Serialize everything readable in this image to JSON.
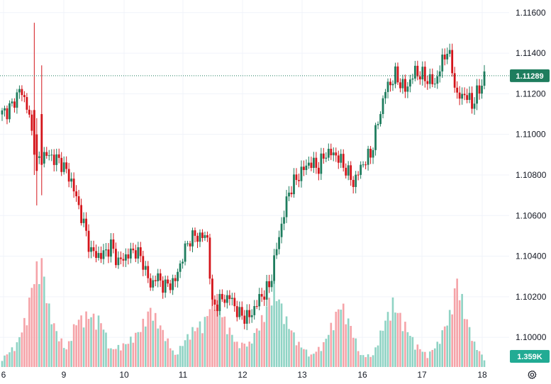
{
  "chart_data": {
    "type": "candlestick",
    "y_ticks": [
      "1.11600",
      "1.11400",
      "1.11200",
      "1.11000",
      "1.10800",
      "1.10600",
      "1.10400",
      "1.10200",
      "1.10000"
    ],
    "y_tick_values": [
      1.116,
      1.114,
      1.112,
      1.11,
      1.108,
      1.106,
      1.104,
      1.102,
      1.1
    ],
    "ylim": [
      1.09854,
      1.11662
    ],
    "x_ticks": [
      "6",
      "9",
      "10",
      "11",
      "12",
      "13",
      "16",
      "17",
      "18"
    ],
    "current_price": 1.11289,
    "current_price_label": "1.11289",
    "volume_label": "1.359K",
    "grid": true,
    "colors": {
      "up": "#26a69a",
      "down": "#ef5350",
      "up_body": "#1e7d5e",
      "down_body": "#d4141a",
      "vol_up": "#8fd3c4",
      "vol_down": "#f5a3a8",
      "badge_price": "#1e7d5e",
      "badge_vol": "#22ab94"
    },
    "anchors": [
      {
        "i": 0,
        "p": 1.111
      },
      {
        "i": 4,
        "p": 1.1114
      },
      {
        "i": 7,
        "p": 1.1122
      },
      {
        "i": 10,
        "p": 1.1115
      },
      {
        "i": 12,
        "p": 1.11
      },
      {
        "i": 14,
        "p": 1.1086
      },
      {
        "i": 17,
        "p": 1.109
      },
      {
        "i": 20,
        "p": 1.1089
      },
      {
        "i": 24,
        "p": 1.1086
      },
      {
        "i": 28,
        "p": 1.1077
      },
      {
        "i": 32,
        "p": 1.106
      },
      {
        "i": 36,
        "p": 1.1042
      },
      {
        "i": 40,
        "p": 1.104
      },
      {
        "i": 44,
        "p": 1.1045
      },
      {
        "i": 47,
        "p": 1.1037
      },
      {
        "i": 50,
        "p": 1.104
      },
      {
        "i": 54,
        "p": 1.1043
      },
      {
        "i": 57,
        "p": 1.1037
      },
      {
        "i": 60,
        "p": 1.1025
      },
      {
        "i": 62,
        "p": 1.103
      },
      {
        "i": 66,
        "p": 1.1025
      },
      {
        "i": 70,
        "p": 1.1028
      },
      {
        "i": 73,
        "p": 1.104
      },
      {
        "i": 76,
        "p": 1.1049
      },
      {
        "i": 80,
        "p": 1.105
      },
      {
        "i": 83,
        "p": 1.1049
      },
      {
        "i": 85,
        "p": 1.1015
      },
      {
        "i": 88,
        "p": 1.1018
      },
      {
        "i": 92,
        "p": 1.102
      },
      {
        "i": 96,
        "p": 1.1011
      },
      {
        "i": 100,
        "p": 1.101
      },
      {
        "i": 104,
        "p": 1.1019
      },
      {
        "i": 108,
        "p": 1.1025
      },
      {
        "i": 112,
        "p": 1.105
      },
      {
        "i": 116,
        "p": 1.1072
      },
      {
        "i": 120,
        "p": 1.108
      },
      {
        "i": 124,
        "p": 1.1086
      },
      {
        "i": 128,
        "p": 1.1084
      },
      {
        "i": 131,
        "p": 1.1091
      },
      {
        "i": 135,
        "p": 1.109
      },
      {
        "i": 139,
        "p": 1.1083
      },
      {
        "i": 142,
        "p": 1.1076
      },
      {
        "i": 146,
        "p": 1.1086
      },
      {
        "i": 149,
        "p": 1.109
      },
      {
        "i": 152,
        "p": 1.1106
      },
      {
        "i": 155,
        "p": 1.1122
      },
      {
        "i": 159,
        "p": 1.1129
      },
      {
        "i": 163,
        "p": 1.1122
      },
      {
        "i": 167,
        "p": 1.1131
      },
      {
        "i": 171,
        "p": 1.1128
      },
      {
        "i": 175,
        "p": 1.1125
      },
      {
        "i": 178,
        "p": 1.1136
      },
      {
        "i": 180,
        "p": 1.1142
      },
      {
        "i": 182,
        "p": 1.1132
      },
      {
        "i": 184,
        "p": 1.1118
      },
      {
        "i": 187,
        "p": 1.112
      },
      {
        "i": 190,
        "p": 1.1115
      },
      {
        "i": 193,
        "p": 1.1122
      },
      {
        "i": 195,
        "p": 1.1129
      }
    ],
    "spikes": [
      {
        "i": 13,
        "high": 1.1155,
        "low": 1.108,
        "open": 1.1112,
        "close": 1.109
      },
      {
        "i": 14,
        "high": 1.1108,
        "low": 1.1065,
        "open": 1.11,
        "close": 1.1082
      },
      {
        "i": 16,
        "high": 1.1134,
        "low": 1.107,
        "open": 1.111,
        "close": 1.1085
      }
    ],
    "volume_anchors": [
      {
        "i": 0,
        "v": 0.07
      },
      {
        "i": 6,
        "v": 0.2
      },
      {
        "i": 10,
        "v": 0.45
      },
      {
        "i": 13,
        "v": 0.8
      },
      {
        "i": 16,
        "v": 0.9
      },
      {
        "i": 19,
        "v": 0.5
      },
      {
        "i": 22,
        "v": 0.3
      },
      {
        "i": 26,
        "v": 0.15
      },
      {
        "i": 30,
        "v": 0.4
      },
      {
        "i": 35,
        "v": 0.45
      },
      {
        "i": 40,
        "v": 0.4
      },
      {
        "i": 44,
        "v": 0.15
      },
      {
        "i": 50,
        "v": 0.2
      },
      {
        "i": 55,
        "v": 0.3
      },
      {
        "i": 60,
        "v": 0.5
      },
      {
        "i": 64,
        "v": 0.35
      },
      {
        "i": 70,
        "v": 0.1
      },
      {
        "i": 76,
        "v": 0.3
      },
      {
        "i": 82,
        "v": 0.4
      },
      {
        "i": 86,
        "v": 0.65
      },
      {
        "i": 90,
        "v": 0.4
      },
      {
        "i": 95,
        "v": 0.2
      },
      {
        "i": 100,
        "v": 0.2
      },
      {
        "i": 106,
        "v": 0.45
      },
      {
        "i": 110,
        "v": 0.7
      },
      {
        "i": 115,
        "v": 0.4
      },
      {
        "i": 120,
        "v": 0.2
      },
      {
        "i": 125,
        "v": 0.1
      },
      {
        "i": 130,
        "v": 0.2
      },
      {
        "i": 134,
        "v": 0.4
      },
      {
        "i": 137,
        "v": 0.55
      },
      {
        "i": 141,
        "v": 0.35
      },
      {
        "i": 145,
        "v": 0.1
      },
      {
        "i": 150,
        "v": 0.1
      },
      {
        "i": 154,
        "v": 0.35
      },
      {
        "i": 158,
        "v": 0.55
      },
      {
        "i": 162,
        "v": 0.4
      },
      {
        "i": 167,
        "v": 0.2
      },
      {
        "i": 172,
        "v": 0.1
      },
      {
        "i": 176,
        "v": 0.2
      },
      {
        "i": 181,
        "v": 0.45
      },
      {
        "i": 184,
        "v": 0.75
      },
      {
        "i": 188,
        "v": 0.4
      },
      {
        "i": 191,
        "v": 0.2
      },
      {
        "i": 195,
        "v": 0.07
      }
    ],
    "volume_max_units": 4.0
  }
}
